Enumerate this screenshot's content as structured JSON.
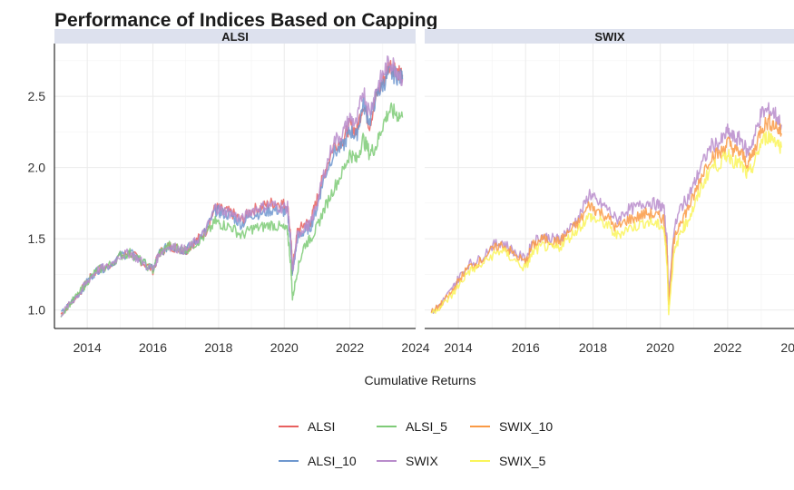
{
  "chart_data": {
    "type": "line",
    "title": "Performance of Indices Based on Capping",
    "xlabel": "Cumulative Returns",
    "ylabel": "",
    "xlim": [
      2013.0,
      2024.0
    ],
    "ylim": [
      0.87,
      2.87
    ],
    "x_ticks": [
      "2014",
      "2016",
      "2018",
      "2020",
      "2022",
      "2024"
    ],
    "y_ticks": [
      "1.0",
      "1.5",
      "2.0",
      "2.5"
    ],
    "grid": true,
    "legend_position": "bottom",
    "colors": {
      "ALSI": "#E8605F",
      "ALSI_10": "#6E97CF",
      "ALSI_5": "#7ECB77",
      "SWIX": "#B98CCB",
      "SWIX_10": "#FA9A45",
      "SWIX_5": "#FAF55A",
      "strip_bg": "#DDE1EE",
      "grid": "#EBEBEB"
    },
    "x": [
      2013.2,
      2013.5,
      2013.8,
      2014.0,
      2014.3,
      2014.6,
      2015.0,
      2015.3,
      2015.6,
      2016.0,
      2016.2,
      2016.5,
      2016.8,
      2017.0,
      2017.3,
      2017.6,
      2017.9,
      2018.1,
      2018.4,
      2018.7,
      2019.0,
      2019.3,
      2019.6,
      2019.9,
      2020.1,
      2020.2,
      2020.25,
      2020.4,
      2020.6,
      2020.8,
      2021.0,
      2021.2,
      2021.5,
      2021.8,
      2022.0,
      2022.2,
      2022.4,
      2022.6,
      2022.8,
      2023.0,
      2023.2,
      2023.4,
      2023.6
    ],
    "panels": [
      {
        "label": "ALSI",
        "series": [
          {
            "name": "ALSI",
            "values": [
              0.97,
              1.05,
              1.13,
              1.2,
              1.28,
              1.3,
              1.38,
              1.4,
              1.35,
              1.28,
              1.4,
              1.45,
              1.43,
              1.42,
              1.48,
              1.55,
              1.72,
              1.7,
              1.68,
              1.63,
              1.7,
              1.72,
              1.75,
              1.75,
              1.73,
              1.5,
              1.28,
              1.55,
              1.6,
              1.62,
              1.78,
              1.95,
              2.15,
              2.2,
              2.3,
              2.25,
              2.45,
              2.3,
              2.5,
              2.6,
              2.72,
              2.7,
              2.65
            ]
          },
          {
            "name": "ALSI_10",
            "values": [
              0.97,
              1.05,
              1.13,
              1.2,
              1.28,
              1.3,
              1.38,
              1.4,
              1.35,
              1.28,
              1.4,
              1.45,
              1.43,
              1.42,
              1.48,
              1.55,
              1.7,
              1.68,
              1.66,
              1.6,
              1.67,
              1.68,
              1.7,
              1.7,
              1.68,
              1.46,
              1.25,
              1.5,
              1.55,
              1.58,
              1.72,
              1.92,
              2.1,
              2.15,
              2.26,
              2.22,
              2.45,
              2.32,
              2.5,
              2.58,
              2.66,
              2.65,
              2.62
            ]
          },
          {
            "name": "ALSI_5",
            "values": [
              0.97,
              1.05,
              1.13,
              1.2,
              1.28,
              1.3,
              1.38,
              1.4,
              1.35,
              1.28,
              1.4,
              1.45,
              1.43,
              1.42,
              1.47,
              1.52,
              1.62,
              1.6,
              1.58,
              1.52,
              1.57,
              1.58,
              1.6,
              1.58,
              1.55,
              1.32,
              1.08,
              1.28,
              1.45,
              1.5,
              1.58,
              1.7,
              1.85,
              1.98,
              2.1,
              2.05,
              2.2,
              2.1,
              2.15,
              2.3,
              2.4,
              2.38,
              2.35
            ]
          },
          {
            "name": "SWIX",
            "values": [
              0.97,
              1.05,
              1.13,
              1.2,
              1.28,
              1.3,
              1.38,
              1.4,
              1.35,
              1.28,
              1.4,
              1.45,
              1.43,
              1.42,
              1.48,
              1.55,
              1.72,
              1.7,
              1.68,
              1.63,
              1.7,
              1.72,
              1.74,
              1.72,
              1.72,
              1.48,
              1.27,
              1.52,
              1.58,
              1.6,
              1.75,
              1.95,
              2.18,
              2.25,
              2.35,
              2.3,
              2.55,
              2.38,
              2.55,
              2.65,
              2.75,
              2.7,
              2.62
            ]
          }
        ]
      },
      {
        "label": "SWIX",
        "series": [
          {
            "name": "SWIX",
            "values": [
              0.98,
              1.05,
              1.14,
              1.22,
              1.32,
              1.35,
              1.45,
              1.48,
              1.42,
              1.35,
              1.48,
              1.52,
              1.5,
              1.5,
              1.57,
              1.66,
              1.82,
              1.76,
              1.72,
              1.63,
              1.7,
              1.72,
              1.76,
              1.74,
              1.72,
              1.48,
              1.08,
              1.55,
              1.72,
              1.78,
              1.88,
              2.0,
              2.15,
              2.18,
              2.25,
              2.2,
              2.2,
              2.1,
              2.22,
              2.38,
              2.4,
              2.38,
              2.3
            ]
          },
          {
            "name": "SWIX_10",
            "values": [
              0.98,
              1.04,
              1.12,
              1.2,
              1.3,
              1.33,
              1.42,
              1.46,
              1.4,
              1.33,
              1.45,
              1.5,
              1.48,
              1.48,
              1.55,
              1.62,
              1.74,
              1.7,
              1.66,
              1.57,
              1.63,
              1.65,
              1.68,
              1.66,
              1.64,
              1.4,
              1.04,
              1.47,
              1.63,
              1.7,
              1.8,
              1.93,
              2.08,
              2.1,
              2.18,
              2.12,
              2.1,
              2.02,
              2.12,
              2.28,
              2.32,
              2.3,
              2.24
            ]
          },
          {
            "name": "SWIX_5",
            "values": [
              0.98,
              1.03,
              1.1,
              1.17,
              1.27,
              1.3,
              1.38,
              1.42,
              1.36,
              1.29,
              1.4,
              1.45,
              1.43,
              1.44,
              1.51,
              1.58,
              1.66,
              1.63,
              1.6,
              1.52,
              1.57,
              1.59,
              1.62,
              1.6,
              1.58,
              1.34,
              0.98,
              1.38,
              1.55,
              1.62,
              1.72,
              1.85,
              2.0,
              2.03,
              2.1,
              2.04,
              2.02,
              1.94,
              2.03,
              2.18,
              2.22,
              2.2,
              2.14
            ]
          }
        ]
      }
    ],
    "legend": [
      "ALSI",
      "ALSI_10",
      "ALSI_5",
      "SWIX",
      "SWIX_10",
      "SWIX_5"
    ]
  }
}
